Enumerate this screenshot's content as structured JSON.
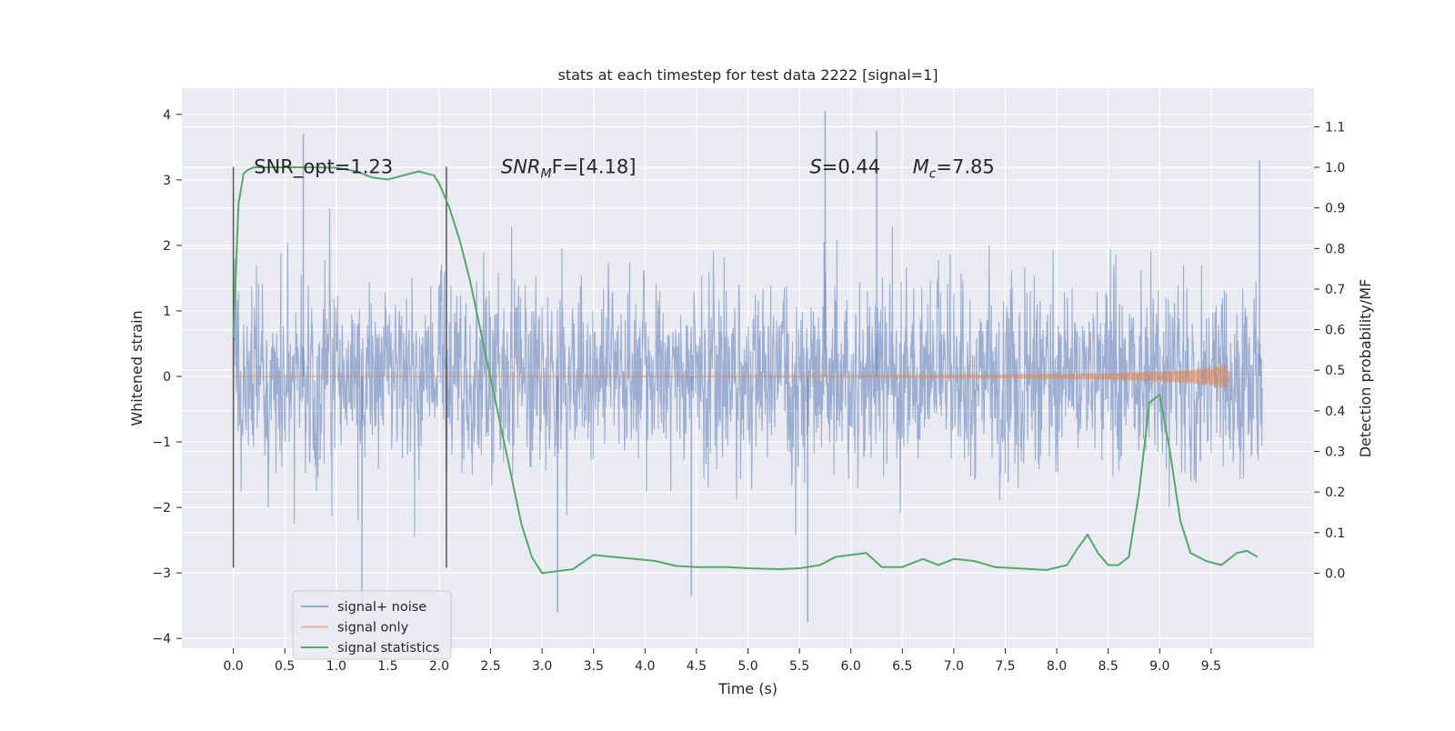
{
  "chart_data": {
    "type": "line",
    "title": "stats at each timestep for test data 2222 [signal=1]",
    "xlabel": "Time (s)",
    "ylabel": "Whitened strain",
    "y2label": "Detection probability/MF",
    "xlim": [
      -0.5,
      10.5
    ],
    "ylim": [
      -4.15,
      4.4
    ],
    "y2lim": [
      -0.185,
      1.195
    ],
    "x_ticks": [
      0.0,
      0.5,
      1.0,
      1.5,
      2.0,
      2.5,
      3.0,
      3.5,
      4.0,
      4.5,
      5.0,
      5.5,
      6.0,
      6.5,
      7.0,
      7.5,
      8.0,
      8.5,
      9.0,
      9.5
    ],
    "x_tick_labels": [
      "0.0",
      "0.5",
      "1.0",
      "1.5",
      "2.0",
      "2.5",
      "3.0",
      "3.5",
      "4.0",
      "4.5",
      "5.0",
      "5.5",
      "6.0",
      "6.5",
      "7.0",
      "7.5",
      "8.0",
      "8.5",
      "9.0",
      "9.5"
    ],
    "y_ticks": [
      4,
      3,
      2,
      1,
      0,
      -1,
      -2,
      -3,
      -4
    ],
    "y_tick_labels": [
      "4",
      "3",
      "2",
      "1",
      "0",
      "−1",
      "−2",
      "−3",
      "−4"
    ],
    "y2_ticks": [
      1.1,
      1.0,
      0.9,
      0.8,
      0.7,
      0.6,
      0.5,
      0.4,
      0.3,
      0.2,
      0.1,
      0.0
    ],
    "y2_tick_labels": [
      "1.1",
      "1.0",
      "0.9",
      "0.8",
      "0.7",
      "0.6",
      "0.5",
      "0.4",
      "0.3",
      "0.2",
      "0.1",
      "0.0"
    ],
    "grid": true,
    "legend_position": "bottom-left",
    "vlines": [
      0.0,
      2.07
    ],
    "vline_range": [
      -2.92,
      3.2
    ],
    "series": [
      {
        "name": "signal+ noise",
        "color": "#4c72b0",
        "axis": "left",
        "x_range": [
          0.0,
          10.0
        ],
        "sample_count": 2800,
        "typical_abs": 1.2,
        "peak_range": [
          -3.8,
          4.05
        ],
        "highlighted_peaks": [
          {
            "x": 5.58,
            "y": -3.75
          },
          {
            "x": 5.75,
            "y": 4.05
          },
          {
            "x": 3.15,
            "y": -3.6
          },
          {
            "x": 0.68,
            "y": 3.7
          },
          {
            "x": 1.25,
            "y": -3.5
          },
          {
            "x": 4.45,
            "y": -3.35
          },
          {
            "x": 9.97,
            "y": 3.3
          },
          {
            "x": 6.25,
            "y": 3.75
          }
        ]
      },
      {
        "name": "signal only",
        "color": "#dd8452",
        "axis": "left",
        "envelope": {
          "x": [
            0.0,
            2.0,
            4.0,
            6.0,
            7.0,
            8.0,
            8.5,
            9.0,
            9.3,
            9.5,
            9.6,
            9.65,
            9.68
          ],
          "amp": [
            0.005,
            0.006,
            0.008,
            0.012,
            0.02,
            0.035,
            0.05,
            0.08,
            0.11,
            0.15,
            0.18,
            0.2,
            0.02
          ]
        }
      },
      {
        "name": "signal statistics",
        "color": "#55a868",
        "axis": "right",
        "x": [
          0.0,
          0.05,
          0.1,
          0.15,
          0.2,
          0.3,
          0.4,
          0.5,
          0.7,
          1.0,
          1.2,
          1.35,
          1.5,
          1.65,
          1.8,
          1.95,
          2.0,
          2.1,
          2.2,
          2.3,
          2.4,
          2.5,
          2.6,
          2.7,
          2.8,
          2.9,
          3.0,
          3.15,
          3.3,
          3.5,
          3.7,
          3.9,
          4.1,
          4.3,
          4.5,
          4.8,
          5.0,
          5.3,
          5.5,
          5.7,
          5.85,
          6.0,
          6.15,
          6.3,
          6.5,
          6.7,
          6.85,
          7.0,
          7.2,
          7.4,
          7.6,
          7.9,
          8.1,
          8.2,
          8.3,
          8.4,
          8.5,
          8.6,
          8.7,
          8.8,
          8.9,
          9.0,
          9.1,
          9.2,
          9.3,
          9.45,
          9.6,
          9.75,
          9.85,
          9.95
        ],
        "y": [
          0.58,
          0.91,
          0.985,
          0.995,
          1.0,
          1.0,
          1.0,
          1.0,
          1.0,
          0.999,
          0.99,
          0.975,
          0.97,
          0.98,
          0.99,
          0.98,
          0.96,
          0.9,
          0.82,
          0.72,
          0.6,
          0.48,
          0.36,
          0.24,
          0.12,
          0.04,
          0.0,
          0.005,
          0.01,
          0.045,
          0.04,
          0.035,
          0.03,
          0.018,
          0.015,
          0.015,
          0.012,
          0.01,
          0.012,
          0.02,
          0.04,
          0.045,
          0.05,
          0.015,
          0.015,
          0.035,
          0.02,
          0.035,
          0.03,
          0.015,
          0.012,
          0.008,
          0.02,
          0.06,
          0.095,
          0.05,
          0.02,
          0.02,
          0.04,
          0.2,
          0.42,
          0.44,
          0.3,
          0.13,
          0.05,
          0.03,
          0.02,
          0.05,
          0.055,
          0.04
        ]
      }
    ],
    "annotations": [
      {
        "x": 0.2,
        "y": 3.2,
        "text": "SNR_opt=1.23"
      },
      {
        "x": 2.6,
        "y": 3.2,
        "base": "SNR",
        "sub": "M",
        "rest": "F=[4.18]"
      },
      {
        "x": 5.6,
        "y": 3.2,
        "base": "S",
        "rest": "=0.44"
      },
      {
        "x": 6.6,
        "y": 3.2,
        "base": "M",
        "sub": "c",
        "rest": "=7.85"
      }
    ]
  }
}
